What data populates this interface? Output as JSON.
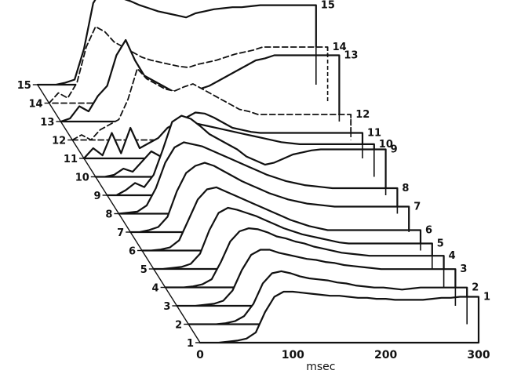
{
  "chart_data": {
    "type": "line",
    "layout": "3d-waterfall",
    "xlabel": "msec",
    "x_ticks": [
      "0",
      "100",
      "200",
      "300"
    ],
    "xlim": [
      0,
      300
    ],
    "x": [
      0,
      10,
      20,
      30,
      40,
      50,
      60,
      70,
      80,
      90,
      100,
      110,
      120,
      130,
      140,
      150,
      160,
      170,
      180,
      190,
      200,
      210,
      220,
      230,
      240,
      250,
      260,
      270,
      280,
      290,
      300
    ],
    "grid": false,
    "series": [
      {
        "name": "1",
        "style": "solid",
        "values": [
          0,
          0,
          0,
          1,
          2,
          4,
          10,
          30,
          45,
          50,
          50,
          49,
          48,
          47,
          46,
          46,
          45,
          44,
          44,
          43,
          43,
          42,
          42,
          42,
          42,
          43,
          44,
          44,
          45,
          45,
          45
        ]
      },
      {
        "name": "2",
        "style": "solid",
        "values": [
          0,
          0,
          0,
          0,
          1,
          3,
          8,
          20,
          40,
          50,
          52,
          50,
          47,
          45,
          44,
          43,
          41,
          40,
          38,
          37,
          36,
          36,
          35,
          34,
          35,
          36,
          36,
          36,
          36,
          36,
          36
        ]
      },
      {
        "name": "3",
        "style": "solid",
        "values": [
          0,
          0,
          0,
          1,
          2,
          5,
          15,
          35,
          50,
          55,
          55,
          52,
          50,
          48,
          46,
          45,
          43,
          42,
          40,
          39,
          38,
          37,
          36,
          36,
          36,
          36,
          36,
          36,
          36,
          36,
          36
        ]
      },
      {
        "name": "4",
        "style": "solid",
        "values": [
          0,
          0,
          0,
          1,
          3,
          8,
          25,
          45,
          55,
          58,
          57,
          54,
          50,
          48,
          45,
          43,
          40,
          38,
          36,
          34,
          33,
          32,
          31,
          31,
          31,
          31,
          31,
          31,
          31,
          31,
          31
        ]
      },
      {
        "name": "5",
        "style": "solid",
        "values": [
          0,
          0,
          1,
          2,
          5,
          15,
          38,
          55,
          60,
          58,
          55,
          52,
          48,
          44,
          40,
          37,
          34,
          32,
          30,
          28,
          26,
          25,
          25,
          25,
          25,
          25,
          25,
          25,
          25,
          25,
          25
        ]
      },
      {
        "name": "6",
        "style": "solid",
        "values": [
          0,
          0,
          1,
          3,
          10,
          30,
          50,
          60,
          62,
          58,
          54,
          50,
          46,
          42,
          38,
          34,
          30,
          27,
          24,
          22,
          20,
          20,
          20,
          20,
          20,
          20,
          20,
          20,
          20,
          20,
          20
        ]
      },
      {
        "name": "7",
        "style": "solid",
        "values": [
          0,
          0,
          2,
          5,
          15,
          40,
          58,
          65,
          68,
          65,
          60,
          55,
          50,
          46,
          42,
          38,
          35,
          32,
          30,
          28,
          27,
          26,
          25,
          25,
          25,
          25,
          25,
          25,
          25,
          25,
          25
        ]
      },
      {
        "name": "8",
        "style": "solid",
        "values": [
          0,
          1,
          2,
          8,
          25,
          50,
          65,
          70,
          68,
          66,
          62,
          58,
          54,
          50,
          46,
          42,
          38,
          35,
          32,
          30,
          28,
          27,
          26,
          25,
          25,
          25,
          25,
          25,
          25,
          25,
          25
        ]
      },
      {
        "name": "9",
        "style": "solid",
        "values": [
          0,
          0,
          5,
          12,
          8,
          20,
          45,
          72,
          78,
          75,
          68,
          60,
          55,
          50,
          45,
          38,
          34,
          30,
          32,
          36,
          40,
          42,
          44,
          45,
          45,
          45,
          45,
          45,
          45,
          45,
          45
        ]
      },
      {
        "name": "10",
        "style": "solid",
        "values": [
          0,
          0,
          2,
          8,
          5,
          15,
          25,
          20,
          35,
          48,
          50,
          52,
          50,
          48,
          46,
          44,
          42,
          40,
          38,
          36,
          34,
          33,
          32,
          32,
          32,
          32,
          32,
          32,
          32,
          32,
          32
        ]
      },
      {
        "name": "11",
        "style": "solid",
        "values": [
          0,
          10,
          3,
          25,
          5,
          30,
          10,
          15,
          20,
          30,
          35,
          40,
          45,
          44,
          40,
          35,
          30,
          28,
          26,
          25,
          25,
          25,
          25,
          25,
          25,
          25,
          25,
          25,
          25,
          25,
          25
        ]
      },
      {
        "name": "12",
        "style": "dashed",
        "values": [
          0,
          5,
          0,
          10,
          15,
          20,
          40,
          70,
          60,
          55,
          50,
          48,
          52,
          55,
          50,
          45,
          40,
          35,
          30,
          28,
          25,
          25,
          25,
          25,
          25,
          25,
          25,
          25,
          25,
          25,
          25
        ]
      },
      {
        "name": "13",
        "style": "solid",
        "values": [
          0,
          3,
          15,
          10,
          25,
          35,
          65,
          80,
          60,
          45,
          40,
          35,
          30,
          28,
          30,
          32,
          35,
          40,
          45,
          50,
          55,
          60,
          62,
          65,
          65,
          65,
          65,
          65,
          65,
          65,
          65
        ]
      },
      {
        "name": "14",
        "style": "dashed",
        "values": [
          0,
          10,
          5,
          20,
          55,
          75,
          70,
          60,
          55,
          50,
          45,
          42,
          40,
          38,
          36,
          35,
          38,
          40,
          42,
          45,
          48,
          50,
          52,
          55,
          55,
          55,
          55,
          55,
          55,
          55,
          55
        ]
      },
      {
        "name": "15",
        "style": "solid",
        "values": [
          0,
          0,
          0,
          2,
          5,
          35,
          80,
          95,
          90,
          85,
          82,
          78,
          75,
          72,
          70,
          68,
          66,
          70,
          72,
          74,
          75,
          76,
          76,
          77,
          78,
          78,
          78,
          78,
          78,
          78,
          78
        ]
      }
    ]
  }
}
